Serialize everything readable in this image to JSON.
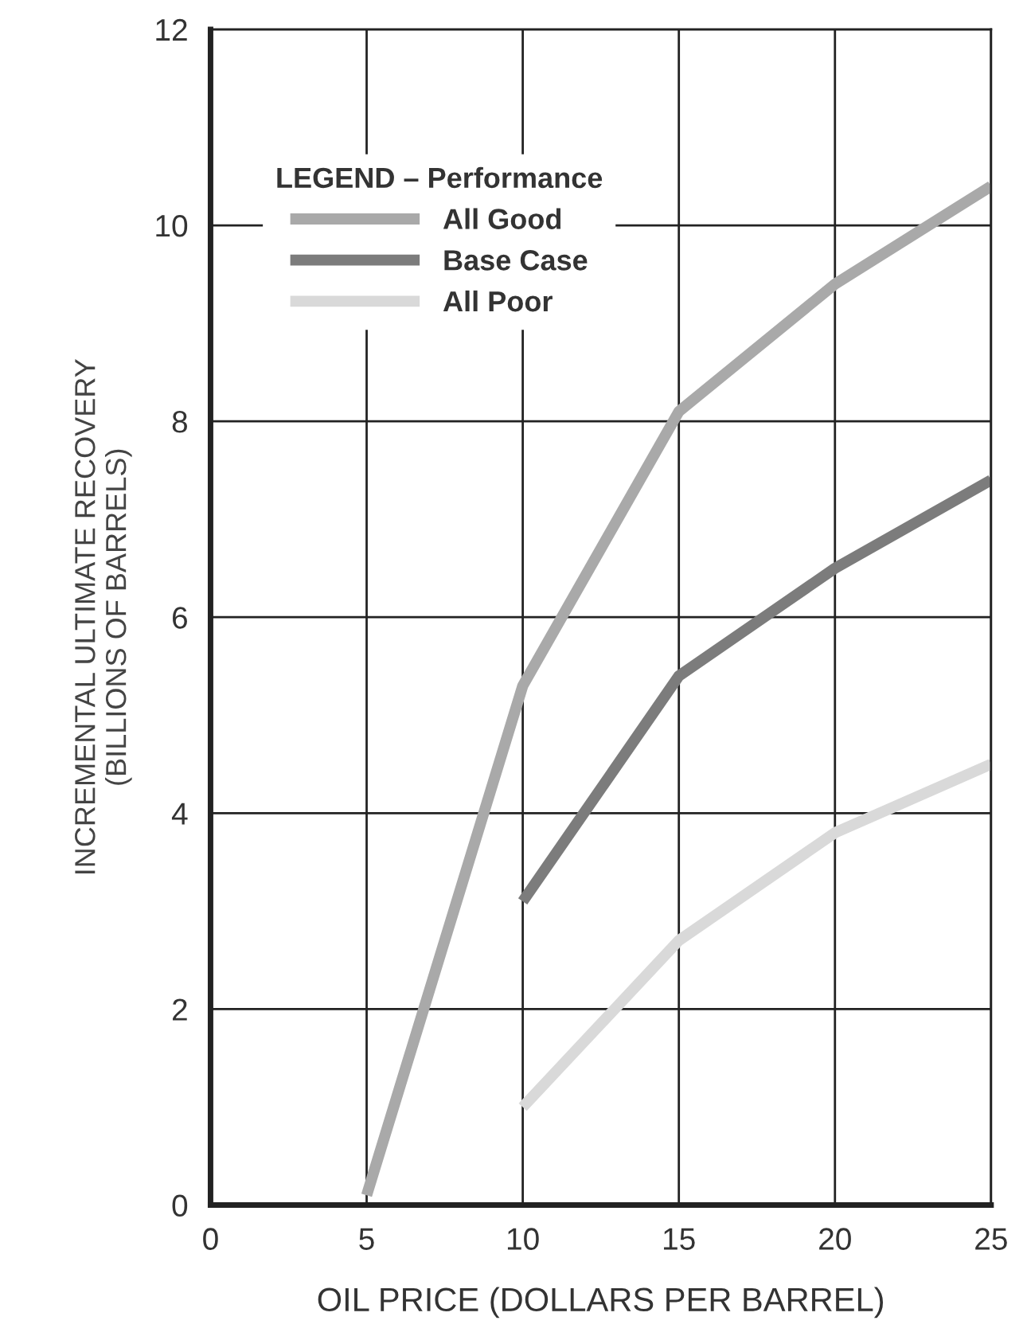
{
  "chart_data": {
    "type": "line",
    "xlabel": "OIL PRICE (DOLLARS PER BARREL)",
    "ylabel": "INCREMENTAL ULTIMATE RECOVERY\n(BILLIONS OF BARRELS)",
    "legend_title": "LEGEND – Performance",
    "series": [
      {
        "name": "All Good",
        "color": "#a9a9a9",
        "x": [
          5,
          10,
          15,
          20,
          25
        ],
        "values": [
          0.1,
          5.3,
          8.1,
          9.4,
          10.4
        ]
      },
      {
        "name": "Base Case",
        "color": "#7c7c7c",
        "x": [
          10,
          15,
          20,
          25
        ],
        "values": [
          3.1,
          5.4,
          6.5,
          7.4
        ]
      },
      {
        "name": "All Poor",
        "color": "#d9d9d9",
        "x": [
          10,
          15,
          20,
          25
        ],
        "values": [
          1.0,
          2.7,
          3.8,
          4.5
        ]
      }
    ],
    "xlim": [
      0,
      25
    ],
    "xticks": [
      0,
      5,
      10,
      15,
      20,
      25
    ],
    "ylim": [
      0,
      12
    ],
    "yticks": [
      0,
      2,
      4,
      6,
      8,
      10,
      12
    ],
    "grid": true,
    "legend": "top left",
    "marker": "none",
    "line_style": "solid"
  }
}
